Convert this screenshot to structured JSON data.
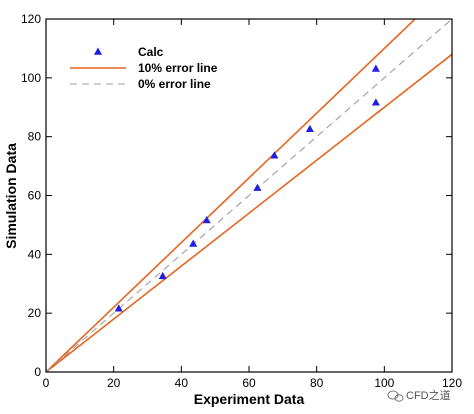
{
  "chart_data": {
    "type": "scatter",
    "title": "",
    "xlabel": "Experiment Data",
    "ylabel": "Simulation Data",
    "xlim": [
      0,
      120
    ],
    "ylim": [
      0,
      120
    ],
    "xticks": [
      0,
      20,
      40,
      60,
      80,
      100,
      120
    ],
    "yticks": [
      0,
      20,
      40,
      60,
      80,
      100,
      120
    ],
    "grid": false,
    "legend_position": "top-left",
    "series": [
      {
        "name": "Calc",
        "kind": "scatter",
        "marker": "triangle",
        "color": "#1f1fe0",
        "x": [
          21.5,
          34.5,
          43.5,
          47.5,
          62.5,
          67.5,
          78.0,
          97.5,
          97.5
        ],
        "y": [
          21.5,
          32.5,
          43.5,
          51.5,
          62.5,
          73.5,
          82.5,
          103.0,
          91.5
        ]
      },
      {
        "name": "10% error line",
        "kind": "line",
        "color": "#e8641e",
        "lines": [
          {
            "x": [
              0,
              120
            ],
            "y": [
              0,
              132
            ]
          },
          {
            "x": [
              0,
              120
            ],
            "y": [
              0,
              108
            ]
          }
        ]
      },
      {
        "name": "0% error line",
        "kind": "dashed-line",
        "color": "#a0a0a0",
        "lines": [
          {
            "x": [
              0,
              120
            ],
            "y": [
              0,
              120
            ]
          }
        ]
      }
    ]
  },
  "watermark": {
    "text": "CFD之道",
    "icon": "wechat-icon"
  }
}
